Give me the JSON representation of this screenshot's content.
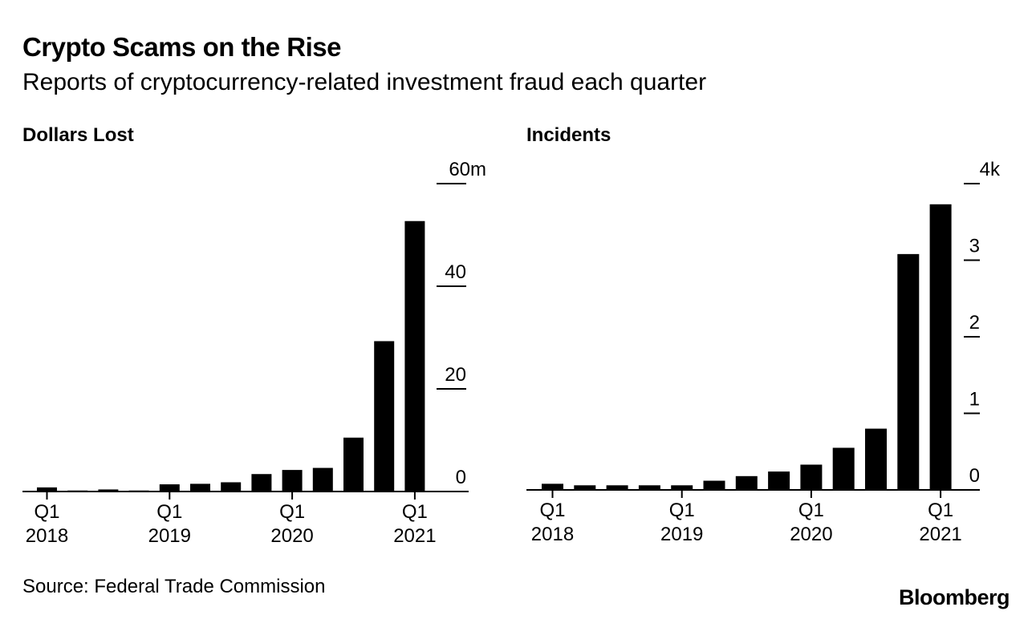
{
  "header": {
    "title": "Crypto Scams on the Rise",
    "subtitle": "Reports of cryptocurrency-related investment fraud each quarter"
  },
  "footer": {
    "source": "Source: Federal Trade Commission",
    "logo": "Bloomberg"
  },
  "colors": {
    "bar": "#000000",
    "axis": "#000000",
    "background": "#ffffff"
  },
  "chart_data": [
    {
      "type": "bar",
      "title": "Dollars Lost",
      "categories": [
        "Q1 2018",
        "Q2 2018",
        "Q3 2018",
        "Q4 2018",
        "Q1 2019",
        "Q2 2019",
        "Q3 2019",
        "Q4 2019",
        "Q1 2020",
        "Q2 2020",
        "Q3 2020",
        "Q4 2020",
        "Q1 2021"
      ],
      "values": [
        0.8,
        0.2,
        0.4,
        0.2,
        1.4,
        1.5,
        1.8,
        3.4,
        4.2,
        4.6,
        10.5,
        29.3,
        52.7
      ],
      "y_ticks": [
        0,
        20,
        40,
        60
      ],
      "y_tick_labels": [
        "0",
        "20",
        "40",
        "60m"
      ],
      "ylim": [
        0,
        60
      ],
      "x_tick_labels": [
        {
          "index": 0,
          "line1": "Q1",
          "line2": "2018"
        },
        {
          "index": 4,
          "line1": "Q1",
          "line2": "2019"
        },
        {
          "index": 8,
          "line1": "Q1",
          "line2": "2020"
        },
        {
          "index": 12,
          "line1": "Q1",
          "line2": "2021"
        }
      ],
      "y_axis_side": "right",
      "grid": false,
      "legend": "none"
    },
    {
      "type": "bar",
      "title": "Incidents",
      "categories": [
        "Q1 2018",
        "Q2 2018",
        "Q3 2018",
        "Q4 2018",
        "Q1 2019",
        "Q2 2019",
        "Q3 2019",
        "Q4 2019",
        "Q1 2020",
        "Q2 2020",
        "Q3 2020",
        "Q4 2020",
        "Q1 2021"
      ],
      "values": [
        0.08,
        0.06,
        0.06,
        0.06,
        0.06,
        0.12,
        0.18,
        0.24,
        0.33,
        0.55,
        0.8,
        3.08,
        3.73
      ],
      "y_ticks": [
        0,
        1,
        2,
        3,
        4
      ],
      "y_tick_labels": [
        "0",
        "1",
        "2",
        "3",
        "4k"
      ],
      "ylim": [
        0,
        4
      ],
      "x_tick_labels": [
        {
          "index": 0,
          "line1": "Q1",
          "line2": "2018"
        },
        {
          "index": 4,
          "line1": "Q1",
          "line2": "2019"
        },
        {
          "index": 8,
          "line1": "Q1",
          "line2": "2020"
        },
        {
          "index": 12,
          "line1": "Q1",
          "line2": "2021"
        }
      ],
      "y_axis_side": "right",
      "grid": false,
      "legend": "none"
    }
  ]
}
